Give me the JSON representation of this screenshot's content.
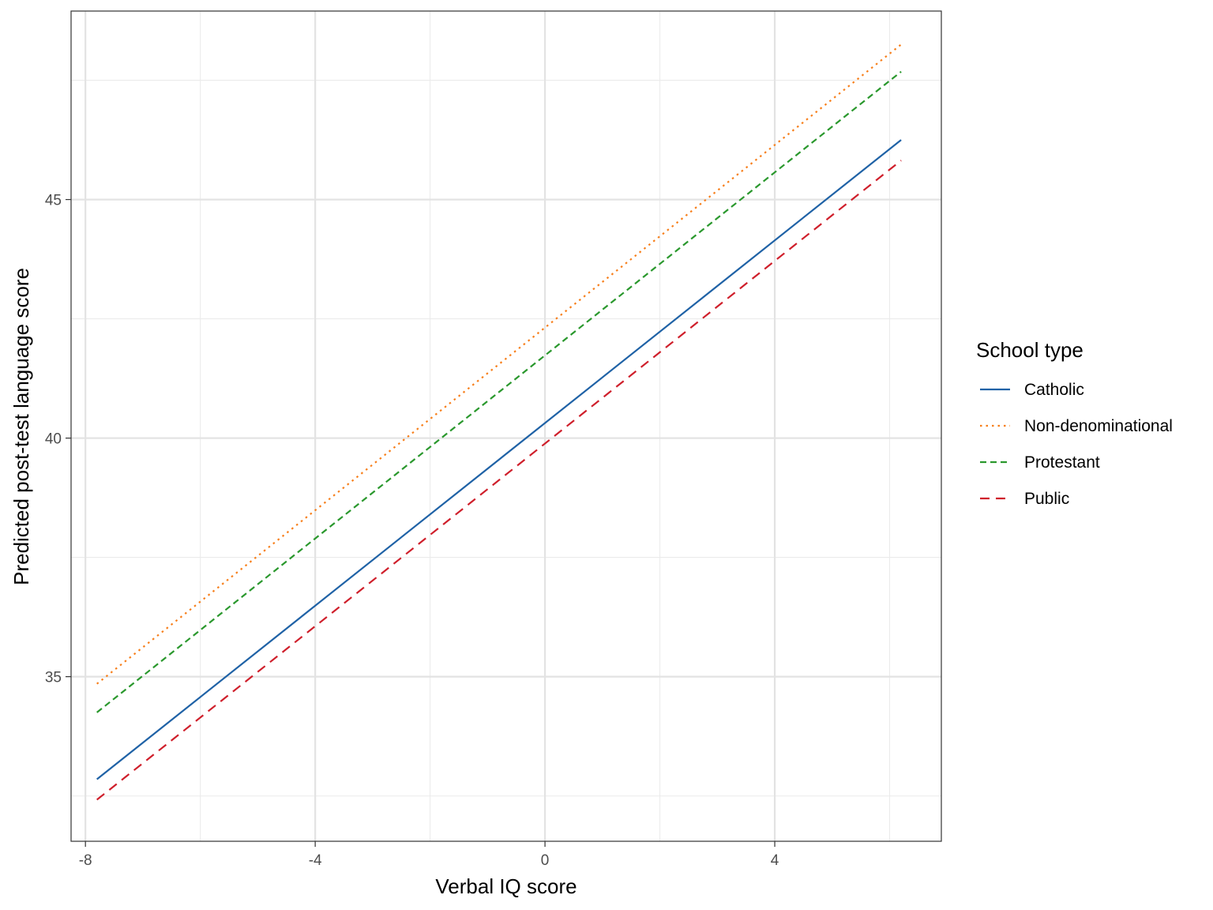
{
  "chart_data": {
    "type": "line",
    "title": "",
    "xlabel": "Verbal IQ score",
    "ylabel": "Predicted post-test language score",
    "xlim": [
      -8.25,
      6.9
    ],
    "ylim": [
      31.55,
      48.95
    ],
    "x_ticks": [
      -8,
      -4,
      0,
      4
    ],
    "x_tick_labels": [
      "-8",
      "-4",
      "0",
      "4"
    ],
    "x_minor_ticks": [
      -6,
      -2,
      2,
      6
    ],
    "y_ticks": [
      35,
      40,
      45
    ],
    "y_tick_labels": [
      "35",
      "40",
      "45"
    ],
    "y_minor_ticks": [
      32.5,
      37.5,
      42.5,
      47.5
    ],
    "grid": true,
    "legend": {
      "title": "School type",
      "position": "right"
    },
    "series": [
      {
        "name": "Catholic",
        "color": "#1f62a6",
        "linestyle": "solid",
        "x": [
          -7.8,
          6.2
        ],
        "y": [
          32.85,
          46.25
        ]
      },
      {
        "name": "Non-denominational",
        "color": "#f77f1b",
        "linestyle": "dotted",
        "x": [
          -7.8,
          6.2
        ],
        "y": [
          34.85,
          48.25
        ]
      },
      {
        "name": "Protestant",
        "color": "#2a982d",
        "linestyle": "dashed",
        "x": [
          -7.8,
          6.2
        ],
        "y": [
          34.25,
          47.68
        ]
      },
      {
        "name": "Public",
        "color": "#cf1f2b",
        "linestyle": "longdash",
        "x": [
          -7.8,
          6.2
        ],
        "y": [
          32.42,
          45.82
        ]
      }
    ]
  }
}
